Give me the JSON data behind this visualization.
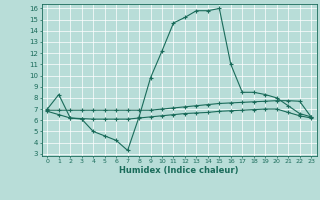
{
  "xlabel": "Humidex (Indice chaleur)",
  "xlim": [
    -0.5,
    23.5
  ],
  "ylim": [
    2.8,
    16.4
  ],
  "yticks": [
    3,
    4,
    5,
    6,
    7,
    8,
    9,
    10,
    11,
    12,
    13,
    14,
    15,
    16
  ],
  "xticks": [
    0,
    1,
    2,
    3,
    4,
    5,
    6,
    7,
    8,
    9,
    10,
    11,
    12,
    13,
    14,
    15,
    16,
    17,
    18,
    19,
    20,
    21,
    22,
    23
  ],
  "bg_color": "#b8ddd8",
  "line_color": "#1a6b5a",
  "grid_color": "#d8eeea",
  "line1_x": [
    0,
    1,
    2,
    3,
    4,
    5,
    6,
    7,
    8,
    9,
    10,
    11,
    12,
    13,
    14,
    15,
    16,
    17,
    18,
    19,
    20,
    21,
    22,
    23
  ],
  "line1_y": [
    7.0,
    8.3,
    6.2,
    6.1,
    5.0,
    4.6,
    4.2,
    3.3,
    6.3,
    9.8,
    12.2,
    14.7,
    15.2,
    15.8,
    15.8,
    16.0,
    11.0,
    8.5,
    8.5,
    8.3,
    8.0,
    7.3,
    6.6,
    6.3
  ],
  "line2_x": [
    0,
    1,
    2,
    3,
    4,
    5,
    6,
    7,
    8,
    9,
    10,
    11,
    12,
    13,
    14,
    15,
    16,
    17,
    18,
    19,
    20,
    21,
    22,
    23
  ],
  "line2_y": [
    6.9,
    6.9,
    6.9,
    6.9,
    6.9,
    6.9,
    6.9,
    6.9,
    6.9,
    6.9,
    7.0,
    7.1,
    7.2,
    7.3,
    7.4,
    7.5,
    7.55,
    7.6,
    7.65,
    7.7,
    7.75,
    7.75,
    7.7,
    6.3
  ],
  "line3_x": [
    0,
    1,
    2,
    3,
    4,
    5,
    6,
    7,
    8,
    9,
    10,
    11,
    12,
    13,
    14,
    15,
    16,
    17,
    18,
    19,
    20,
    21,
    22,
    23
  ],
  "line3_y": [
    6.8,
    6.5,
    6.2,
    6.15,
    6.1,
    6.1,
    6.1,
    6.1,
    6.2,
    6.3,
    6.4,
    6.5,
    6.6,
    6.65,
    6.7,
    6.8,
    6.85,
    6.9,
    6.95,
    7.0,
    7.0,
    6.7,
    6.4,
    6.2
  ]
}
